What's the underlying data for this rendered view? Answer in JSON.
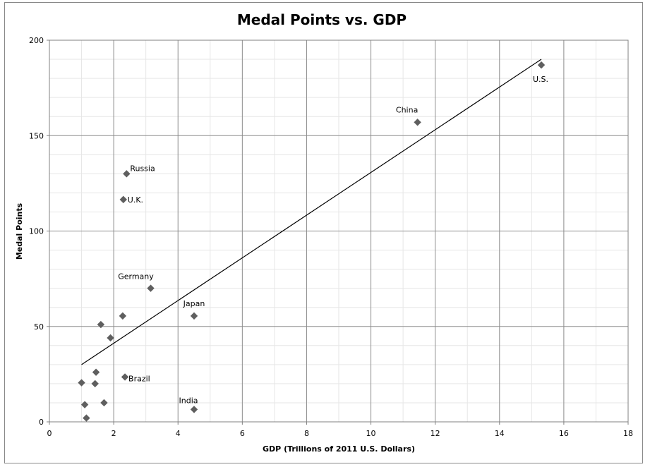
{
  "chart_data": {
    "type": "scatter",
    "title": "Medal Points vs. GDP",
    "xlabel": "GDP (Trillions of 2011 U.S. Dollars)",
    "ylabel": "Medal Points",
    "xlim": [
      0,
      18
    ],
    "ylim": [
      0,
      200
    ],
    "x_ticks": [
      0,
      2,
      4,
      6,
      8,
      10,
      12,
      14,
      16,
      18
    ],
    "y_ticks": [
      0,
      50,
      100,
      150,
      200
    ],
    "grid": "major and minor",
    "legend": "none",
    "marker": "diamond",
    "marker_color": "#5f5f5f",
    "trendline": {
      "type": "linear",
      "x": [
        1.0,
        15.3
      ],
      "y": [
        30,
        190
      ]
    },
    "points": [
      {
        "x": 15.3,
        "y": 187,
        "label": "U.S."
      },
      {
        "x": 11.45,
        "y": 157,
        "label": "China"
      },
      {
        "x": 2.4,
        "y": 130,
        "label": "Russia"
      },
      {
        "x": 2.3,
        "y": 116.5,
        "label": "U.K."
      },
      {
        "x": 3.15,
        "y": 70,
        "label": "Germany"
      },
      {
        "x": 4.5,
        "y": 55.5,
        "label": "Japan"
      },
      {
        "x": 2.35,
        "y": 23.5,
        "label": "Brazil"
      },
      {
        "x": 4.5,
        "y": 6.5,
        "label": "India"
      },
      {
        "x": 2.28,
        "y": 55.5,
        "label": ""
      },
      {
        "x": 1.6,
        "y": 51,
        "label": ""
      },
      {
        "x": 1.9,
        "y": 44,
        "label": ""
      },
      {
        "x": 1.45,
        "y": 26,
        "label": ""
      },
      {
        "x": 1.0,
        "y": 20.5,
        "label": ""
      },
      {
        "x": 1.42,
        "y": 20,
        "label": ""
      },
      {
        "x": 1.7,
        "y": 10,
        "label": ""
      },
      {
        "x": 1.1,
        "y": 9,
        "label": ""
      },
      {
        "x": 1.15,
        "y": 2,
        "label": ""
      }
    ]
  }
}
